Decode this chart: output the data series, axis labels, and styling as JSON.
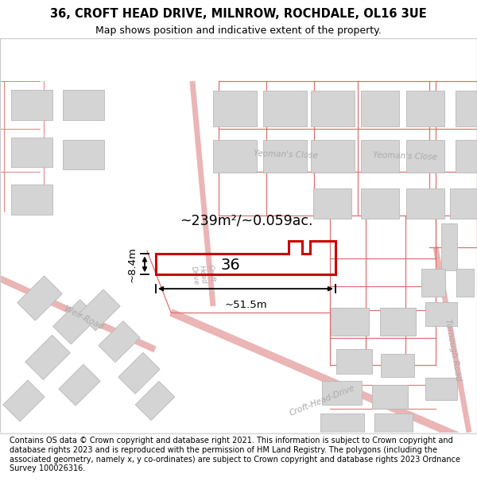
{
  "title_line1": "36, CROFT HEAD DRIVE, MILNROW, ROCHDALE, OL16 3UE",
  "title_line2": "Map shows position and indicative extent of the property.",
  "footer_text": "Contains OS data © Crown copyright and database right 2021. This information is subject to Crown copyright and database rights 2023 and is reproduced with the permission of HM Land Registry. The polygons (including the associated geometry, namely x, y co-ordinates) are subject to Crown copyright and database rights 2023 Ordnance Survey 100026316.",
  "area_label": "~239m²/~0.059ac.",
  "width_label": "~51.5m",
  "height_label": "~8.4m",
  "number_label": "36",
  "map_bg": "#f8f8f8",
  "title_fontsize": 10.5,
  "subtitle_fontsize": 9,
  "footer_fontsize": 7.0
}
